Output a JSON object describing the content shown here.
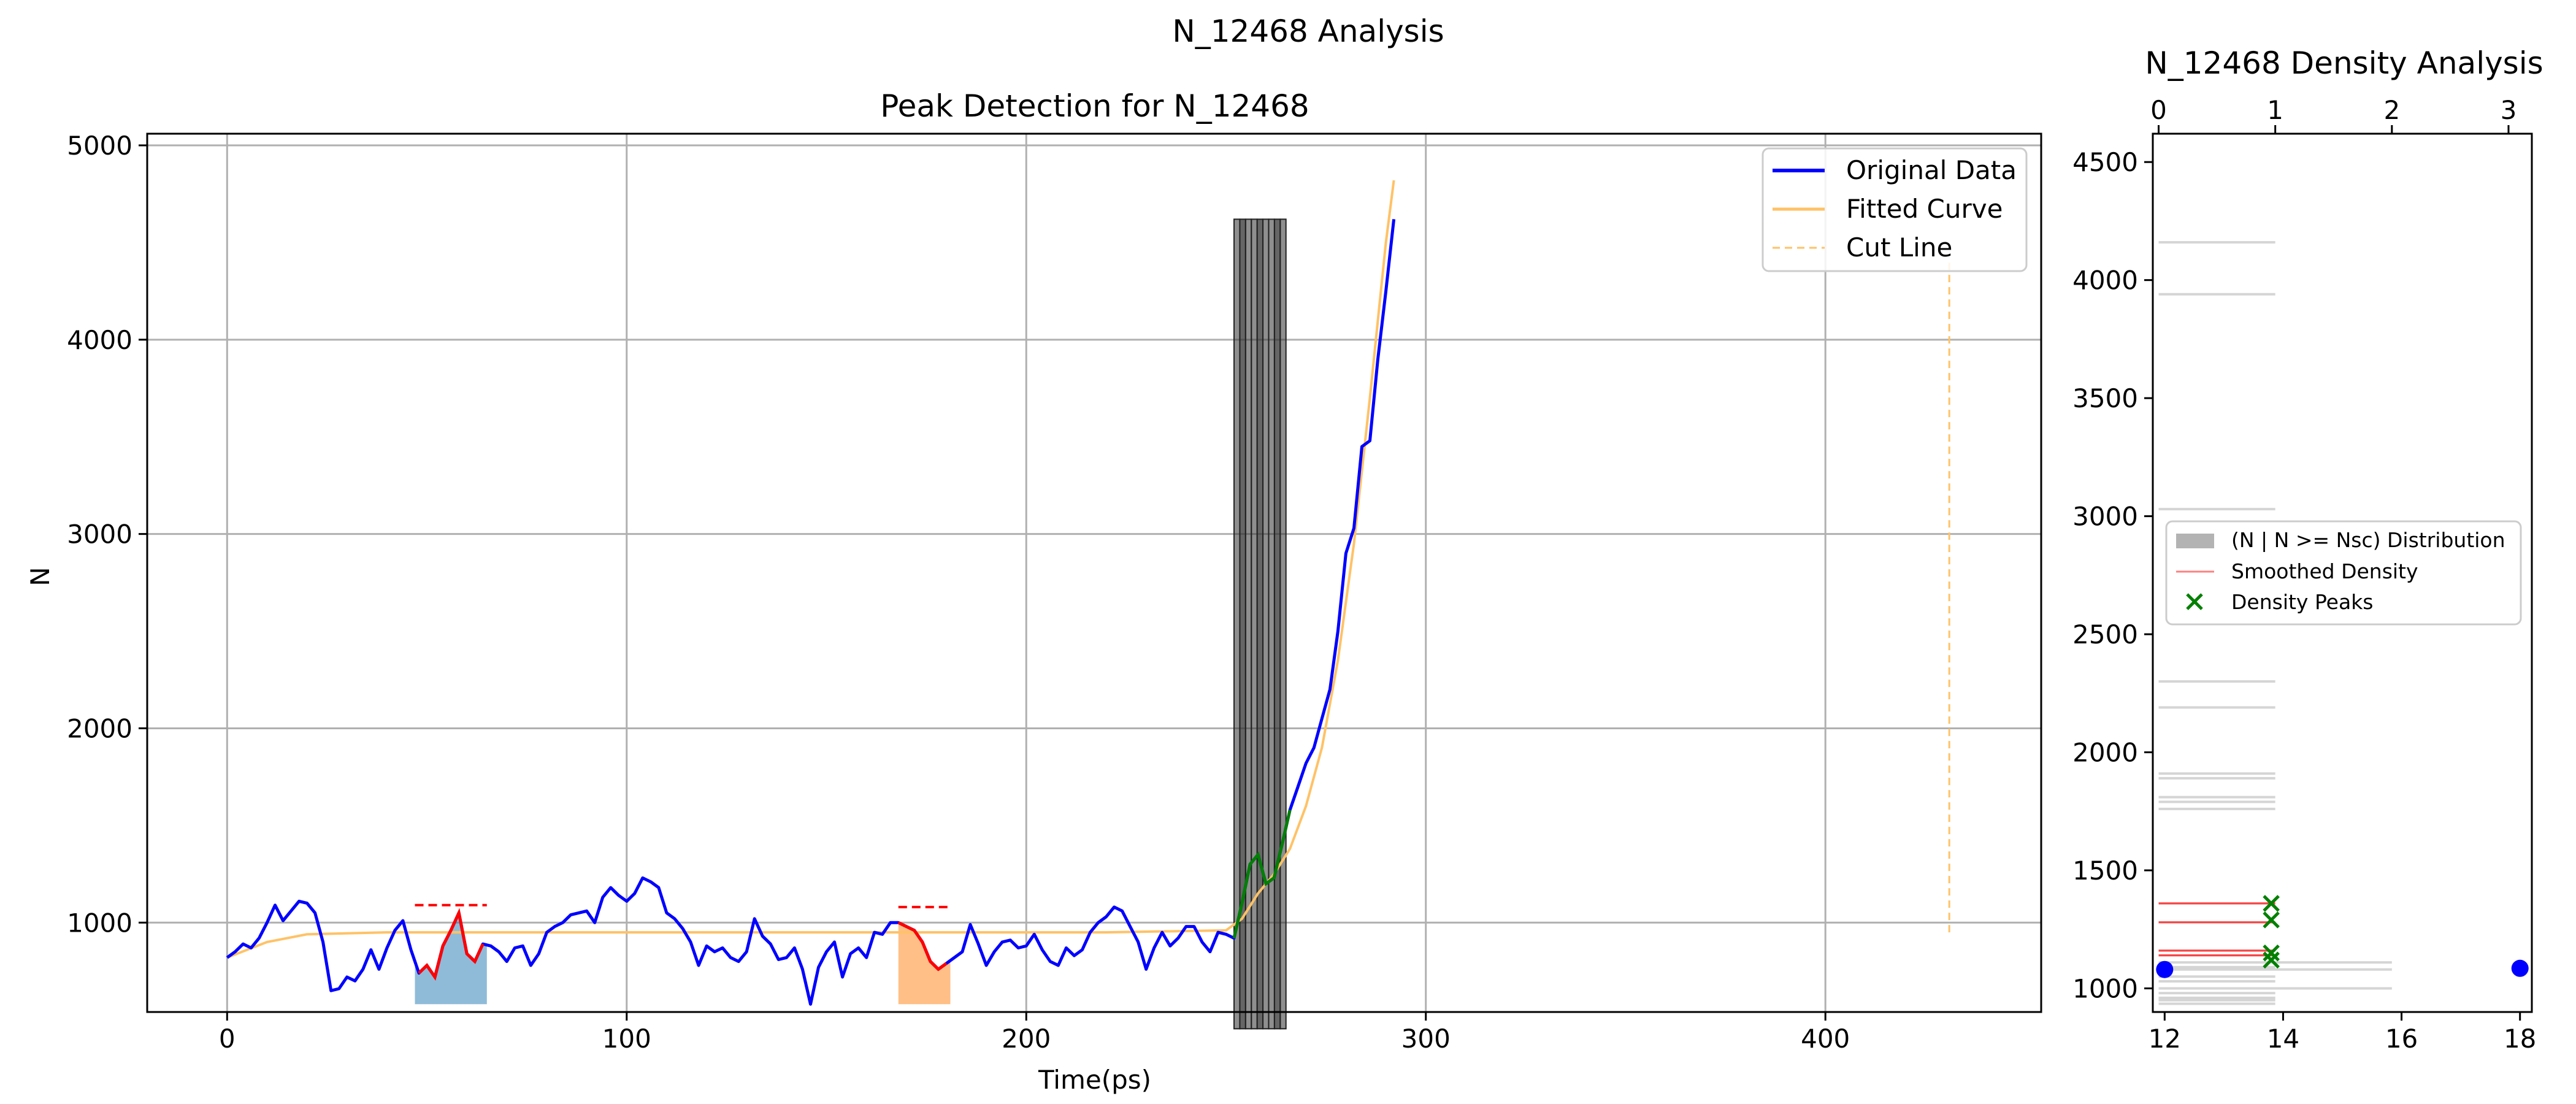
{
  "figure_title": "N_12468 Analysis",
  "chart_data": [
    {
      "type": "line",
      "title": "Peak Detection for N_12468",
      "xlabel": "Time(ps)",
      "ylabel": "N",
      "xlim": [
        -20,
        454
      ],
      "ylim": [
        540,
        5060
      ],
      "xticks": [
        0,
        100,
        200,
        300,
        400
      ],
      "yticks": [
        1000,
        2000,
        3000,
        4000,
        5000
      ],
      "grid": true,
      "legend_position": "top-right",
      "series": [
        {
          "name": "Original Data",
          "color": "#0000ff",
          "points": [
            [
              0,
              820
            ],
            [
              2,
              850
            ],
            [
              4,
              890
            ],
            [
              6,
              870
            ],
            [
              8,
              920
            ],
            [
              10,
              1000
            ],
            [
              12,
              1090
            ],
            [
              14,
              1010
            ],
            [
              16,
              1060
            ],
            [
              18,
              1110
            ],
            [
              20,
              1100
            ],
            [
              22,
              1050
            ],
            [
              24,
              900
            ],
            [
              26,
              650
            ],
            [
              28,
              660
            ],
            [
              30,
              720
            ],
            [
              32,
              700
            ],
            [
              34,
              760
            ],
            [
              36,
              860
            ],
            [
              38,
              760
            ],
            [
              40,
              870
            ],
            [
              42,
              960
            ],
            [
              44,
              1010
            ],
            [
              46,
              860
            ],
            [
              48,
              740
            ],
            [
              50,
              780
            ],
            [
              52,
              720
            ],
            [
              54,
              880
            ],
            [
              56,
              960
            ],
            [
              58,
              1050
            ],
            [
              60,
              840
            ],
            [
              62,
              800
            ],
            [
              64,
              890
            ],
            [
              66,
              880
            ],
            [
              68,
              850
            ],
            [
              70,
              800
            ],
            [
              72,
              870
            ],
            [
              74,
              880
            ],
            [
              76,
              780
            ],
            [
              78,
              840
            ],
            [
              80,
              950
            ],
            [
              82,
              980
            ],
            [
              84,
              1000
            ],
            [
              86,
              1040
            ],
            [
              88,
              1050
            ],
            [
              90,
              1060
            ],
            [
              92,
              1000
            ],
            [
              94,
              1130
            ],
            [
              96,
              1180
            ],
            [
              98,
              1140
            ],
            [
              100,
              1110
            ],
            [
              102,
              1150
            ],
            [
              104,
              1230
            ],
            [
              106,
              1210
            ],
            [
              108,
              1180
            ],
            [
              110,
              1050
            ],
            [
              112,
              1020
            ],
            [
              114,
              970
            ],
            [
              116,
              900
            ],
            [
              118,
              780
            ],
            [
              120,
              880
            ],
            [
              122,
              850
            ],
            [
              124,
              870
            ],
            [
              126,
              820
            ],
            [
              128,
              800
            ],
            [
              130,
              850
            ],
            [
              132,
              1020
            ],
            [
              134,
              930
            ],
            [
              136,
              890
            ],
            [
              138,
              810
            ],
            [
              140,
              820
            ],
            [
              142,
              870
            ],
            [
              144,
              760
            ],
            [
              146,
              580
            ],
            [
              148,
              770
            ],
            [
              150,
              850
            ],
            [
              152,
              900
            ],
            [
              154,
              720
            ],
            [
              156,
              840
            ],
            [
              158,
              870
            ],
            [
              160,
              820
            ],
            [
              162,
              950
            ],
            [
              164,
              940
            ],
            [
              166,
              1000
            ],
            [
              168,
              1000
            ],
            [
              170,
              980
            ],
            [
              172,
              960
            ],
            [
              174,
              900
            ],
            [
              176,
              800
            ],
            [
              178,
              760
            ],
            [
              180,
              790
            ],
            [
              182,
              820
            ],
            [
              184,
              850
            ],
            [
              186,
              990
            ],
            [
              188,
              890
            ],
            [
              190,
              780
            ],
            [
              192,
              850
            ],
            [
              194,
              900
            ],
            [
              196,
              910
            ],
            [
              198,
              870
            ],
            [
              200,
              880
            ],
            [
              202,
              940
            ],
            [
              204,
              860
            ],
            [
              206,
              800
            ],
            [
              208,
              780
            ],
            [
              210,
              870
            ],
            [
              212,
              830
            ],
            [
              214,
              860
            ],
            [
              216,
              950
            ],
            [
              218,
              1000
            ],
            [
              220,
              1030
            ],
            [
              222,
              1080
            ],
            [
              224,
              1060
            ],
            [
              226,
              980
            ],
            [
              228,
              900
            ],
            [
              230,
              760
            ],
            [
              232,
              870
            ],
            [
              234,
              950
            ],
            [
              236,
              880
            ],
            [
              238,
              920
            ],
            [
              240,
              980
            ],
            [
              242,
              980
            ],
            [
              244,
              900
            ],
            [
              246,
              850
            ],
            [
              248,
              950
            ],
            [
              250,
              940
            ],
            [
              252,
              920
            ],
            [
              254,
              1100
            ],
            [
              256,
              1300
            ],
            [
              258,
              1350
            ],
            [
              260,
              1200
            ],
            [
              262,
              1230
            ],
            [
              264,
              1400
            ],
            [
              266,
              1580
            ],
            [
              268,
              1700
            ],
            [
              270,
              1820
            ],
            [
              272,
              1900
            ],
            [
              274,
              2050
            ],
            [
              276,
              2200
            ],
            [
              278,
              2500
            ],
            [
              280,
              2900
            ],
            [
              282,
              3030
            ],
            [
              284,
              3450
            ],
            [
              286,
              3480
            ],
            [
              288,
              3900
            ],
            [
              290,
              4250
            ],
            [
              292,
              4620
            ]
          ]
        },
        {
          "name": "Fitted Curve",
          "color": "#ffc266",
          "points": [
            [
              0,
              820
            ],
            [
              10,
              900
            ],
            [
              20,
              940
            ],
            [
              40,
              950
            ],
            [
              60,
              950
            ],
            [
              100,
              950
            ],
            [
              140,
              950
            ],
            [
              180,
              950
            ],
            [
              220,
              950
            ],
            [
              250,
              960
            ],
            [
              254,
              1020
            ],
            [
              258,
              1150
            ],
            [
              262,
              1250
            ],
            [
              266,
              1380
            ],
            [
              270,
              1600
            ],
            [
              274,
              1900
            ],
            [
              278,
              2350
            ],
            [
              282,
              2950
            ],
            [
              286,
              3700
            ],
            [
              290,
              4500
            ],
            [
              292,
              4820
            ]
          ]
        },
        {
          "name": "Cut Line",
          "color": "#ffc266",
          "points": [
            [
              431,
              950
            ],
            [
              431,
              4400
            ]
          ]
        }
      ],
      "peak_overlays": [
        {
          "x_start": 47,
          "x_end": 65,
          "mean": 1090,
          "color": "#1f77b4",
          "shade_opacity": 0.5
        },
        {
          "x_start": 168,
          "x_end": 181,
          "mean": 1080,
          "color": "#ff7f0e",
          "shade_opacity": 0.5
        }
      ],
      "peak_highlight_color": "#ff0000",
      "gray_bars": {
        "x_start": 252,
        "x_end": 265,
        "top": 4620,
        "color": "#333333"
      },
      "green_segment": {
        "x_start": 252,
        "x_end": 266,
        "color": "#008000"
      }
    },
    {
      "type": "bar",
      "title": "N_12468 Density Analysis",
      "orientation": "horizontal",
      "top_xlim": [
        -0.05,
        3.2
      ],
      "top_xticks": [
        0,
        1,
        2,
        3
      ],
      "bottom_xlim": [
        11.8,
        18.2
      ],
      "bottom_xticks": [
        12,
        14,
        16,
        18
      ],
      "ylim": [
        900,
        4620
      ],
      "yticks": [
        1000,
        1500,
        2000,
        2500,
        3000,
        3500,
        4000,
        4500
      ],
      "legend_position": "center-right",
      "legend": [
        {
          "name": "(N | N >= Nsc) Distribution",
          "color": "#b3b3b3"
        },
        {
          "name": "Smoothed Density",
          "color": "#ff8080"
        },
        {
          "name": "Density Peaks",
          "color": "#008000"
        }
      ],
      "distribution_bars": [
        {
          "n": 4160,
          "count": 1
        },
        {
          "n": 3940,
          "count": 1
        },
        {
          "n": 3030,
          "count": 1
        },
        {
          "n": 2300,
          "count": 1
        },
        {
          "n": 2190,
          "count": 1
        },
        {
          "n": 1910,
          "count": 1
        },
        {
          "n": 1890,
          "count": 1
        },
        {
          "n": 1810,
          "count": 1
        },
        {
          "n": 1790,
          "count": 1
        },
        {
          "n": 1760,
          "count": 1
        },
        {
          "n": 1360,
          "count": 1
        },
        {
          "n": 1280,
          "count": 1
        },
        {
          "n": 1160,
          "count": 1
        },
        {
          "n": 1140,
          "count": 1
        },
        {
          "n": 1110,
          "count": 2
        },
        {
          "n": 1090,
          "count": 1
        },
        {
          "n": 1080,
          "count": 2
        },
        {
          "n": 1050,
          "count": 1
        },
        {
          "n": 1030,
          "count": 1
        },
        {
          "n": 1000,
          "count": 2
        },
        {
          "n": 980,
          "count": 1
        },
        {
          "n": 960,
          "count": 1
        },
        {
          "n": 950,
          "count": 1
        },
        {
          "n": 935,
          "count": 1
        }
      ],
      "smoothed_density_lines": [
        1360,
        1280,
        1160,
        1140
      ],
      "density_peaks": [
        1360,
        1290,
        1150,
        1120
      ],
      "density_peaks_x": 13.8,
      "blue_points": [
        {
          "x": 12.0,
          "n": 1080
        },
        {
          "x": 18.0,
          "n": 1085
        }
      ],
      "blue_color": "#0000ff"
    }
  ]
}
